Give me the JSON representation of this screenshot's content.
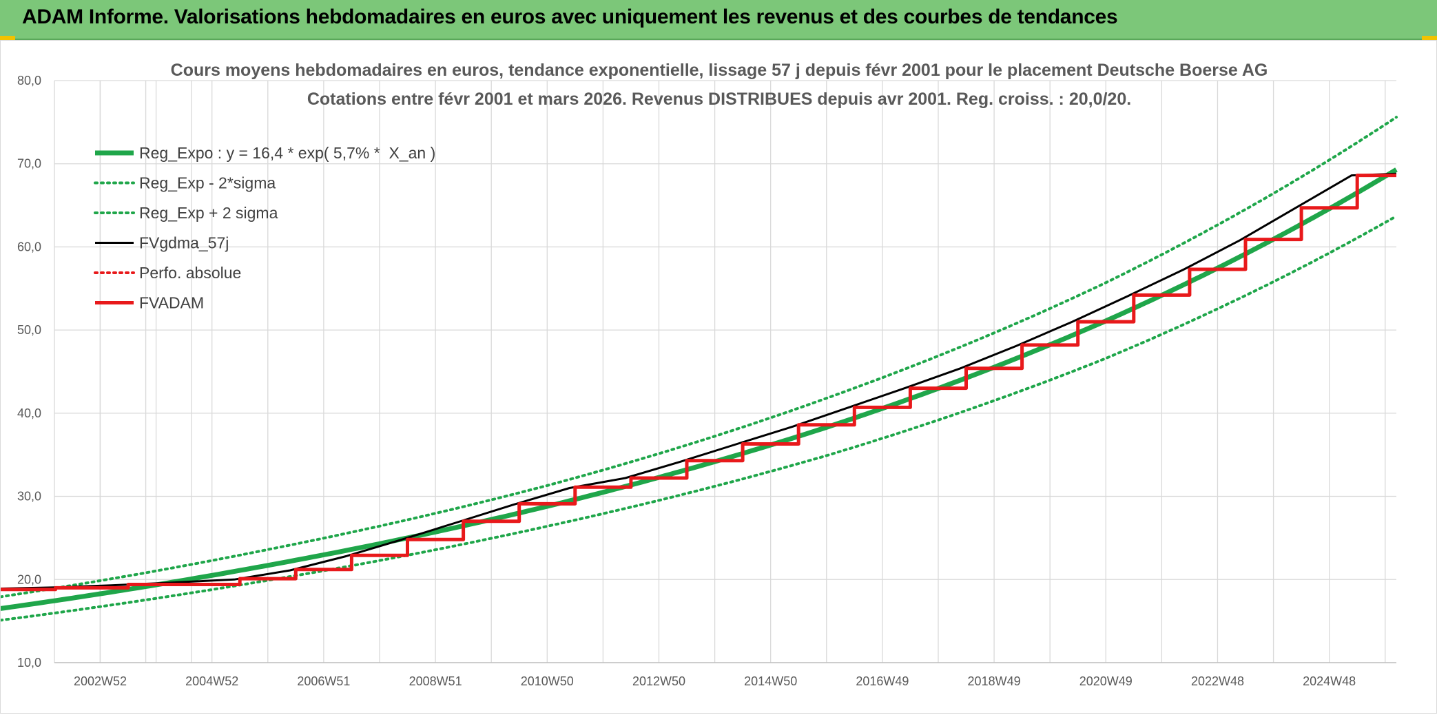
{
  "banner": {
    "title": "ADAM Informe. Valorisations hebdomadaires en euros avec uniquement les revenus et des courbes de tendances"
  },
  "colors": {
    "green": "#1fa64a",
    "black": "#000000",
    "red": "#e8191b",
    "banner": "#7cc779"
  },
  "chart_data": {
    "type": "line",
    "title": "Cours moyens hebdomadaires en euros, tendance exponentielle, lissage 57 j depuis févr 2001 pour le placement Deutsche Boerse AG",
    "subtitle": "Cotations entre févr 2001 et mars 2026. Revenus DISTRIBUES depuis avr 2001. Reg. croiss. : 20,0/20.",
    "xlabel": "",
    "ylabel": "",
    "ylim": [
      10,
      80
    ],
    "yticks": [
      "10,0",
      "20,0",
      "30,0",
      "40,0",
      "50,0",
      "60,0",
      "70,0",
      "80,0"
    ],
    "x_tick_labels": [
      "2002W52",
      "2004W52",
      "2006W51",
      "2008W51",
      "2010W50",
      "2012W50",
      "2014W50",
      "2016W49",
      "2018W49",
      "2020W49",
      "2022W48",
      "2024W48"
    ],
    "x_tick_years": [
      2003.0,
      2005.0,
      2007.0,
      2009.0,
      2011.0,
      2013.0,
      2015.0,
      2017.0,
      2019.0,
      2021.0,
      2023.0,
      2025.0
    ],
    "xlim": [
      2002.18,
      2026.2
    ],
    "grid": true,
    "legend_position": "top-left",
    "series": [
      {
        "name": "Reg_Expo : y = 16,4 * exp( 5,7% *  X_an )",
        "style": "solid-thick",
        "color": "#1fa64a",
        "x": [
          2001.1,
          2006.0,
          2011.0,
          2016.0,
          2021.0,
          2026.2
        ],
        "y": [
          16.4,
          21.7,
          28.8,
          38.3,
          51.1,
          69.3
        ]
      },
      {
        "name": "Reg_Exp - 2*sigma",
        "style": "dotted",
        "color": "#1fa64a",
        "x": [
          2001.1,
          2006.0,
          2011.0,
          2016.0,
          2021.0,
          2026.2
        ],
        "y": [
          15.0,
          19.9,
          26.4,
          34.9,
          46.6,
          63.7
        ]
      },
      {
        "name": "Reg_Exp + 2 sigma",
        "style": "dotted",
        "color": "#1fa64a",
        "x": [
          2001.1,
          2006.0,
          2011.0,
          2016.0,
          2021.0,
          2026.2
        ],
        "y": [
          17.8,
          23.6,
          31.3,
          41.8,
          55.7,
          75.6
        ]
      },
      {
        "name": "FVgdma_57j",
        "style": "solid",
        "color": "#000000",
        "x": [
          2001.15,
          2002.2,
          2003.2,
          2004.2,
          2005.4,
          2006.4,
          2007.4,
          2008.4,
          2009.4,
          2010.4,
          2011.4,
          2012.4,
          2013.4,
          2014.4,
          2015.4,
          2016.4,
          2017.4,
          2018.4,
          2019.4,
          2020.4,
          2021.4,
          2022.4,
          2023.4,
          2024.4,
          2025.4,
          2026.2
        ],
        "y": [
          18.9,
          19.05,
          19.3,
          19.6,
          20.0,
          21.1,
          22.8,
          24.8,
          26.9,
          29.0,
          31.0,
          32.2,
          34.2,
          36.3,
          38.4,
          40.7,
          43.0,
          45.4,
          48.1,
          51.0,
          54.1,
          57.3,
          60.8,
          64.7,
          68.6,
          68.8
        ]
      },
      {
        "name": "Perfo. absolue",
        "style": "dotted",
        "color": "#e8191b",
        "x": [],
        "y": []
      },
      {
        "name": "FVADAM",
        "style": "solid-thick",
        "color": "#e8191b",
        "x": [
          2001.12,
          2001.14,
          2002.2,
          2002.2,
          2003.5,
          2003.5,
          2005.5,
          2005.5,
          2006.5,
          2006.5,
          2007.5,
          2007.5,
          2008.5,
          2008.5,
          2009.5,
          2009.5,
          2010.5,
          2010.5,
          2011.5,
          2011.5,
          2012.5,
          2012.5,
          2013.5,
          2013.5,
          2014.5,
          2014.5,
          2015.5,
          2015.5,
          2016.5,
          2016.5,
          2017.5,
          2017.5,
          2018.5,
          2018.5,
          2019.5,
          2019.5,
          2020.5,
          2020.5,
          2021.5,
          2021.5,
          2022.5,
          2022.5,
          2023.5,
          2023.5,
          2024.5,
          2024.5,
          2025.5,
          2025.5,
          2026.2
        ],
        "y": [
          10.0,
          18.8,
          18.8,
          19.0,
          19.0,
          19.4,
          19.4,
          20.1,
          20.1,
          21.2,
          21.2,
          22.9,
          22.9,
          24.8,
          24.8,
          27.0,
          27.0,
          29.1,
          29.1,
          31.1,
          31.1,
          32.2,
          32.2,
          34.3,
          34.3,
          36.3,
          36.3,
          38.6,
          38.6,
          40.7,
          40.7,
          43.0,
          43.0,
          45.4,
          45.4,
          48.2,
          48.2,
          51.0,
          51.0,
          54.2,
          54.2,
          57.3,
          57.3,
          60.9,
          60.9,
          64.7,
          64.7,
          68.6,
          68.6
        ]
      }
    ]
  }
}
